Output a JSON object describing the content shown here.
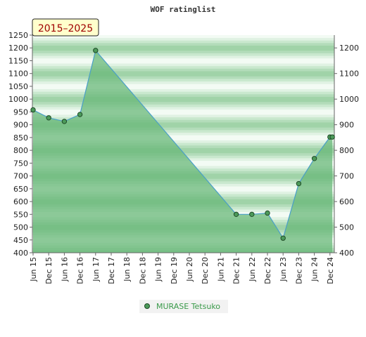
{
  "chart_data": {
    "type": "area",
    "title": "WOF ratinglist",
    "range_label": "2015–2025",
    "xlabel": "",
    "ylabel": "",
    "categories": [
      "Jun 15",
      "Dec 15",
      "Jun 16",
      "Dec 16",
      "Jun 17",
      "Dec 17",
      "Jun 18",
      "Dec 18",
      "Jun 19",
      "Dec 19",
      "Jun 20",
      "Dec 20",
      "Jun 21",
      "Dec 21",
      "Jun 22",
      "Dec 22",
      "Jun 23",
      "Dec 23",
      "Jun 24",
      "Dec 24"
    ],
    "ylim_left": [
      400,
      1250
    ],
    "yticks_left": [
      400,
      450,
      500,
      550,
      600,
      650,
      700,
      750,
      800,
      850,
      900,
      950,
      1000,
      1050,
      1100,
      1150,
      1200,
      1250
    ],
    "ylim_right": [
      400,
      1250
    ],
    "yticks_right": [
      400,
      500,
      600,
      700,
      800,
      900,
      1000,
      1100,
      1200
    ],
    "series": [
      {
        "name": "MURASE Tetsuko",
        "points": [
          {
            "x": 0,
            "y": 958
          },
          {
            "x": 1,
            "y": 927
          },
          {
            "x": 2,
            "y": 913
          },
          {
            "x": 3,
            "y": 940
          },
          {
            "x": 4,
            "y": 1190
          },
          {
            "x": 13,
            "y": 550
          },
          {
            "x": 14,
            "y": 550
          },
          {
            "x": 15,
            "y": 555
          },
          {
            "x": 16,
            "y": 457
          },
          {
            "x": 17,
            "y": 670
          },
          {
            "x": 18,
            "y": 768
          },
          {
            "x": 19,
            "y": 852
          },
          {
            "x": 19.15,
            "y": 852
          }
        ]
      }
    ],
    "grid": true,
    "legend_position": "bottom-center",
    "colors": {
      "area_fill": "#6ab87a",
      "line": "#4a9fc8",
      "marker_fill": "#4c9a5a",
      "marker_stroke": "#1f4a26",
      "badge_bg": "#ffffcc",
      "badge_text": "#a00000",
      "legend_text": "#3a9a4a"
    }
  }
}
